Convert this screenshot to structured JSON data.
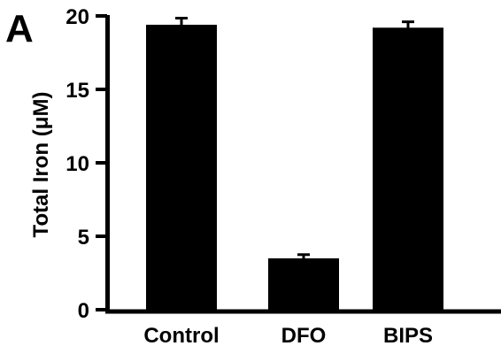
{
  "panel_label": "A",
  "chart_data": {
    "type": "bar",
    "categories": [
      "Control",
      "DFO",
      "BIPS"
    ],
    "values": [
      19.4,
      3.5,
      19.2
    ],
    "errors": [
      0.45,
      0.25,
      0.4
    ],
    "title": "",
    "xlabel": "",
    "ylabel": "Total Iron (μM)",
    "ylim": [
      0,
      20
    ],
    "yticks": [
      "0",
      "5",
      "10",
      "15",
      "20"
    ],
    "grid": false,
    "bar_color": "#000000"
  }
}
